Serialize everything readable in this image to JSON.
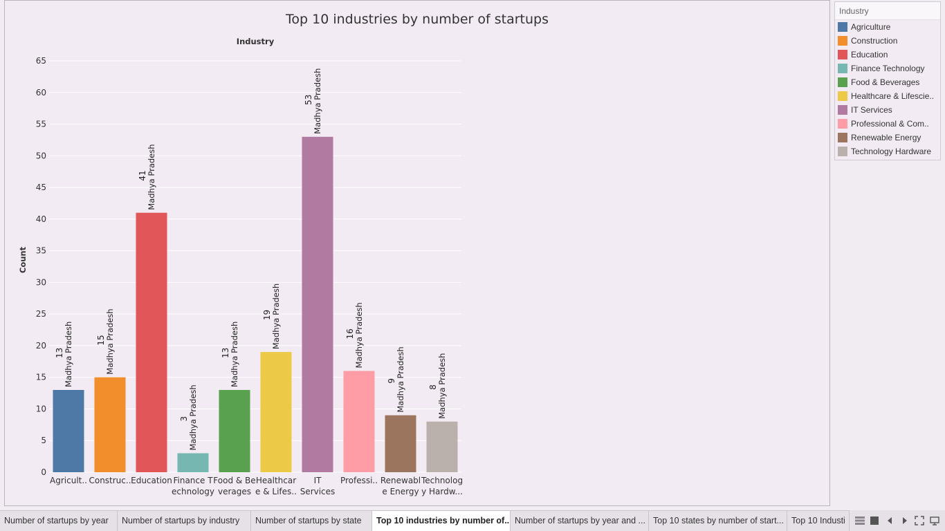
{
  "tabs": [
    {
      "label": "Number of startups by year",
      "width": 170
    },
    {
      "label": "Number of startups by industry",
      "width": 193
    },
    {
      "label": "Number of startups by state",
      "width": 175
    },
    {
      "label": "Top 10 industries by number of...",
      "width": 200,
      "active": true
    },
    {
      "label": "Number of startups by year and ...",
      "width": 200
    },
    {
      "label": "Top 10 states by number of start...",
      "width": 200
    },
    {
      "label": "Top 10 Industi",
      "width": 90
    }
  ],
  "legend": {
    "title": "Industry",
    "items": [
      {
        "label": "Agriculture",
        "color": "#4e79a7"
      },
      {
        "label": "Construction",
        "color": "#f28e2b"
      },
      {
        "label": "Education",
        "color": "#e15759"
      },
      {
        "label": "Finance Technology",
        "color": "#76b7b2"
      },
      {
        "label": "Food & Beverages",
        "color": "#59a14f"
      },
      {
        "label": "Healthcare & Lifescie..",
        "color": "#edc948"
      },
      {
        "label": "IT Services",
        "color": "#b07aa1"
      },
      {
        "label": "Professional & Com..",
        "color": "#ff9da7"
      },
      {
        "label": "Renewable Energy",
        "color": "#9c755f"
      },
      {
        "label": "Technology Hardware",
        "color": "#bab0ac"
      }
    ]
  },
  "chart_data": {
    "type": "bar",
    "title": "Top 10 industries by number of startups",
    "header": "Industry",
    "ylabel": "Count",
    "ylim": [
      0,
      65
    ],
    "yticks": [
      0,
      5,
      10,
      15,
      20,
      25,
      30,
      35,
      40,
      45,
      50,
      55,
      60,
      65
    ],
    "grid": true,
    "legend_position": "right",
    "categories": [
      {
        "label1": "Agricult..",
        "label2": ""
      },
      {
        "label1": "Construc..",
        "label2": ""
      },
      {
        "label1": "Education",
        "label2": ""
      },
      {
        "label1": "Finance T",
        "label2": "echnology"
      },
      {
        "label1": "Food & Be",
        "label2": "verages"
      },
      {
        "label1": "Healthcar",
        "label2": "e & Lifes.."
      },
      {
        "label1": "IT",
        "label2": "Services"
      },
      {
        "label1": "Professi..",
        "label2": ""
      },
      {
        "label1": "Renewabl",
        "label2": "e Energy"
      },
      {
        "label1": "Technolog",
        "label2": "y Hardw..."
      }
    ],
    "values": [
      13,
      15,
      41,
      3,
      13,
      19,
      53,
      16,
      9,
      8
    ],
    "colors": [
      "#4e79a7",
      "#f28e2b",
      "#e15759",
      "#76b7b2",
      "#59a14f",
      "#edc948",
      "#b07aa1",
      "#ff9da7",
      "#9c755f",
      "#bab0ac"
    ],
    "bar_label_state": "Madhya Pradesh"
  }
}
